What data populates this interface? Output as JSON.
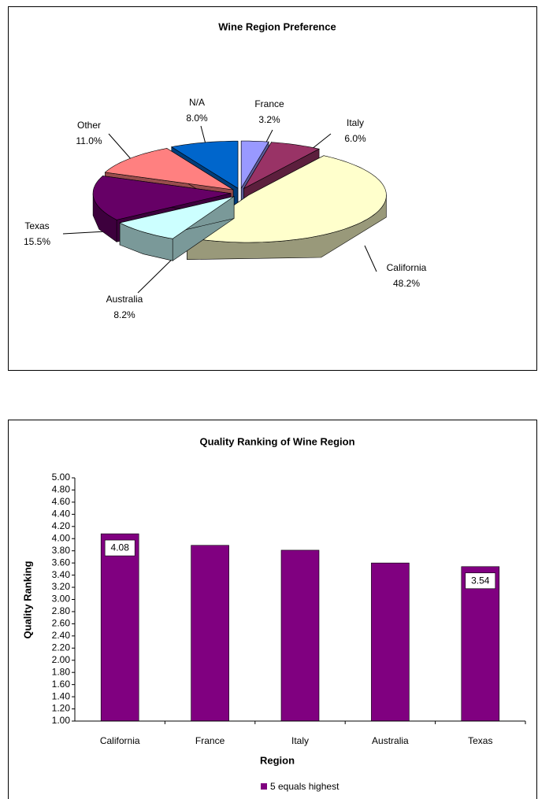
{
  "chart_data": [
    {
      "type": "pie",
      "title": "Wine Region Preference",
      "categories": [
        "France",
        "Italy",
        "California",
        "Australia",
        "Texas",
        "Other",
        "N/A"
      ],
      "values": [
        3.2,
        6.0,
        48.2,
        8.2,
        15.5,
        11.0,
        8.0
      ],
      "value_labels": [
        "3.2%",
        "6.0%",
        "48.2%",
        "8.2%",
        "15.5%",
        "11.0%",
        "8.0%"
      ],
      "colors": [
        "#9999ff",
        "#993366",
        "#ffffcc",
        "#ccffff",
        "#660066",
        "#ff8080",
        "#0066cc"
      ]
    },
    {
      "type": "bar",
      "title": "Quality Ranking of Wine Region",
      "x_label": "Region",
      "y_label": "Quality Ranking",
      "categories": [
        "California",
        "France",
        "Italy",
        "Australia",
        "Texas"
      ],
      "series": [
        {
          "name": "5 equals highest",
          "color": "#800080",
          "values": [
            4.08,
            3.89,
            3.81,
            3.6,
            3.54
          ],
          "value_labels": [
            "4.08",
            null,
            null,
            null,
            "3.54"
          ]
        }
      ],
      "ylim": [
        1,
        5
      ],
      "yticks": [
        {
          "value": 1,
          "label": "1.00"
        },
        {
          "value": 1.2,
          "label": "1.20"
        },
        {
          "value": 1.4,
          "label": "1.40"
        },
        {
          "value": 1.6,
          "label": "1.60"
        },
        {
          "value": 1.8,
          "label": "1.80"
        },
        {
          "value": 2,
          "label": "2.00"
        },
        {
          "value": 2.2,
          "label": "2.20"
        },
        {
          "value": 2.4,
          "label": "2.40"
        },
        {
          "value": 2.6,
          "label": "2.60"
        },
        {
          "value": 2.8,
          "label": "2.80"
        },
        {
          "value": 3,
          "label": "3.00"
        },
        {
          "value": 3.2,
          "label": "3.20"
        },
        {
          "value": 3.4,
          "label": "3.40"
        },
        {
          "value": 3.6,
          "label": "3.60"
        },
        {
          "value": 3.8,
          "label": "3.80"
        },
        {
          "value": 4,
          "label": "4.00"
        },
        {
          "value": 4.2,
          "label": "4.20"
        },
        {
          "value": 4.4,
          "label": "4.40"
        },
        {
          "value": 4.6,
          "label": "4.60"
        },
        {
          "value": 4.8,
          "label": "4.80"
        },
        {
          "value": 5,
          "label": "5.00"
        }
      ],
      "legend": "bottom"
    }
  ]
}
